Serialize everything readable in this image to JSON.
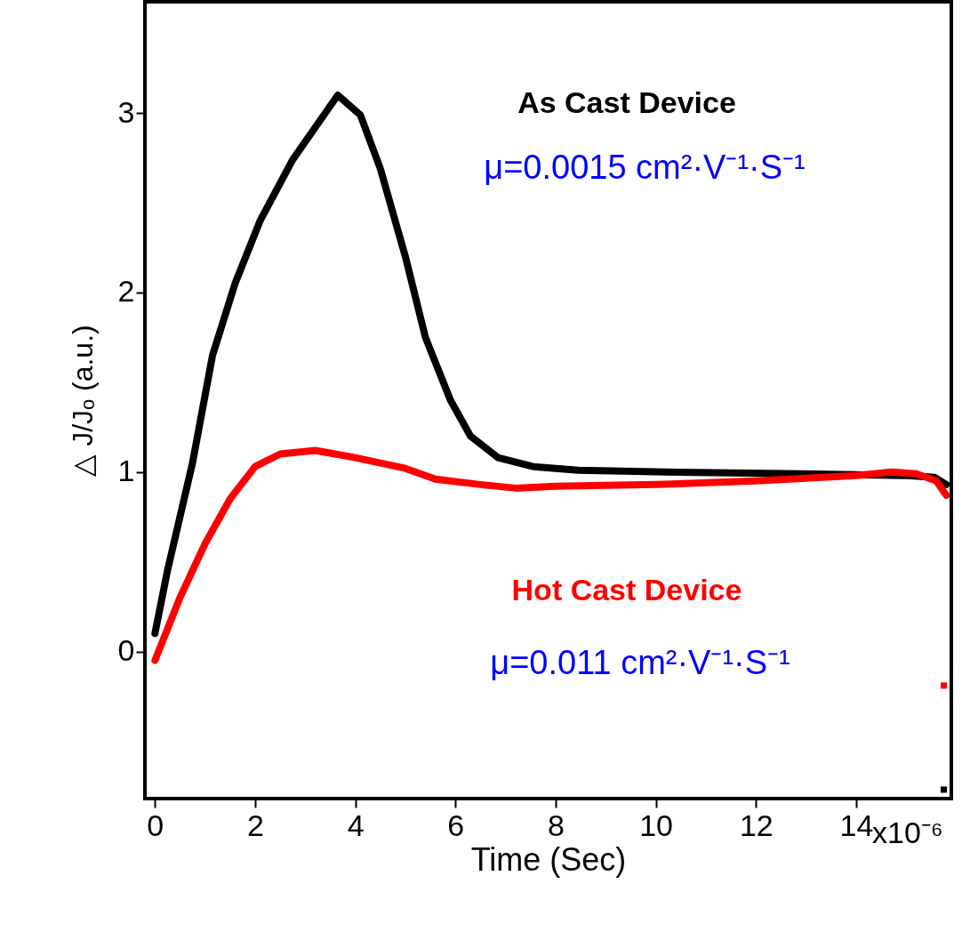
{
  "chart_data": {
    "type": "line",
    "xlabel": "Time (Sec)",
    "ylabel": "△ J/Jₒ  (a.u.)",
    "xlim": [
      -0.2,
      15.9
    ],
    "ylim": [
      -0.82,
      3.62
    ],
    "xticks": [
      0,
      2,
      4,
      6,
      8,
      10,
      12,
      14
    ],
    "yticks": [
      0,
      1,
      2,
      3
    ],
    "grid": false,
    "line_style": "solid",
    "annotations": [
      "x10⁻⁶",
      "μ=0.0015 cm²·V⁻¹·S⁻¹",
      "μ=0.011 cm²·V⁻¹·S⁻¹"
    ],
    "series": [
      {
        "name": "As Cast Device",
        "color": "#000000",
        "x": [
          0,
          0.25,
          0.5,
          0.75,
          1.15,
          1.6,
          2.1,
          2.75,
          3.3,
          3.65,
          4.1,
          4.5,
          5.0,
          5.4,
          5.9,
          6.3,
          6.85,
          7.55,
          8.45,
          10.2,
          12.9,
          15.03,
          15.57,
          15.8
        ],
        "values": [
          0.1,
          0.45,
          0.75,
          1.05,
          1.65,
          2.05,
          2.4,
          2.74,
          2.96,
          3.1,
          2.99,
          2.69,
          2.2,
          1.75,
          1.4,
          1.2,
          1.08,
          1.03,
          1.01,
          1.0,
          0.99,
          0.98,
          0.97,
          0.93
        ]
      },
      {
        "name": "Hot Cast Device",
        "color": "#ff0000",
        "x": [
          0,
          0.5,
          1.0,
          1.5,
          2.0,
          2.5,
          3.2,
          4.0,
          5.0,
          5.6,
          6.5,
          7.2,
          8,
          10,
          12,
          14,
          14.7,
          15.2,
          15.6,
          15.8
        ],
        "values": [
          -0.05,
          0.3,
          0.6,
          0.85,
          1.03,
          1.1,
          1.12,
          1.08,
          1.02,
          0.96,
          0.93,
          0.91,
          0.92,
          0.93,
          0.95,
          0.98,
          1.0,
          0.99,
          0.95,
          0.87
        ]
      },
      {
        "type": "scatter",
        "marker": "square",
        "color": "#ff0000",
        "x": [
          15.75
        ],
        "values": [
          -0.19
        ]
      },
      {
        "type": "scatter",
        "marker": "square",
        "color": "#000000",
        "x": [
          15.75
        ],
        "values": [
          -0.77
        ]
      }
    ]
  }
}
